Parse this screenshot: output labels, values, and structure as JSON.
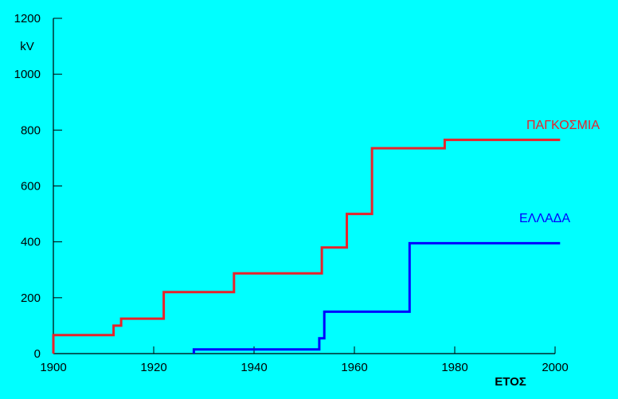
{
  "chart_data": {
    "type": "line",
    "step": true,
    "xlabel": "ΕΤΟΣ",
    "ylabel_unit": "kV",
    "xlim": [
      1900,
      2000
    ],
    "ylim": [
      0,
      1200
    ],
    "xticks": [
      1900,
      1920,
      1940,
      1960,
      1980,
      2000
    ],
    "yticks": [
      0,
      200,
      400,
      600,
      800,
      1000,
      1200
    ],
    "grid": false,
    "series": [
      {
        "name": "ΠΑΓΚΟΣΜΙΑ",
        "color": "#e8222a",
        "points": [
          [
            1900,
            0
          ],
          [
            1900,
            66
          ],
          [
            1912,
            66
          ],
          [
            1912,
            100
          ],
          [
            1913.5,
            100
          ],
          [
            1913.5,
            125
          ],
          [
            1922,
            125
          ],
          [
            1922,
            220
          ],
          [
            1936,
            220
          ],
          [
            1936,
            287
          ],
          [
            1953.5,
            287
          ],
          [
            1953.5,
            380
          ],
          [
            1958.5,
            380
          ],
          [
            1958.5,
            500
          ],
          [
            1963.5,
            500
          ],
          [
            1963.5,
            735
          ],
          [
            1978,
            735
          ],
          [
            1978,
            765
          ],
          [
            2001,
            765
          ]
        ]
      },
      {
        "name": "ΕΛΛΑΔΑ",
        "color": "#0000ff",
        "points": [
          [
            1928,
            0
          ],
          [
            1928,
            15
          ],
          [
            1953,
            15
          ],
          [
            1953,
            55
          ],
          [
            1954,
            55
          ],
          [
            1954,
            150
          ],
          [
            1971,
            150
          ],
          [
            1971,
            395
          ],
          [
            2001,
            395
          ]
        ]
      }
    ]
  }
}
